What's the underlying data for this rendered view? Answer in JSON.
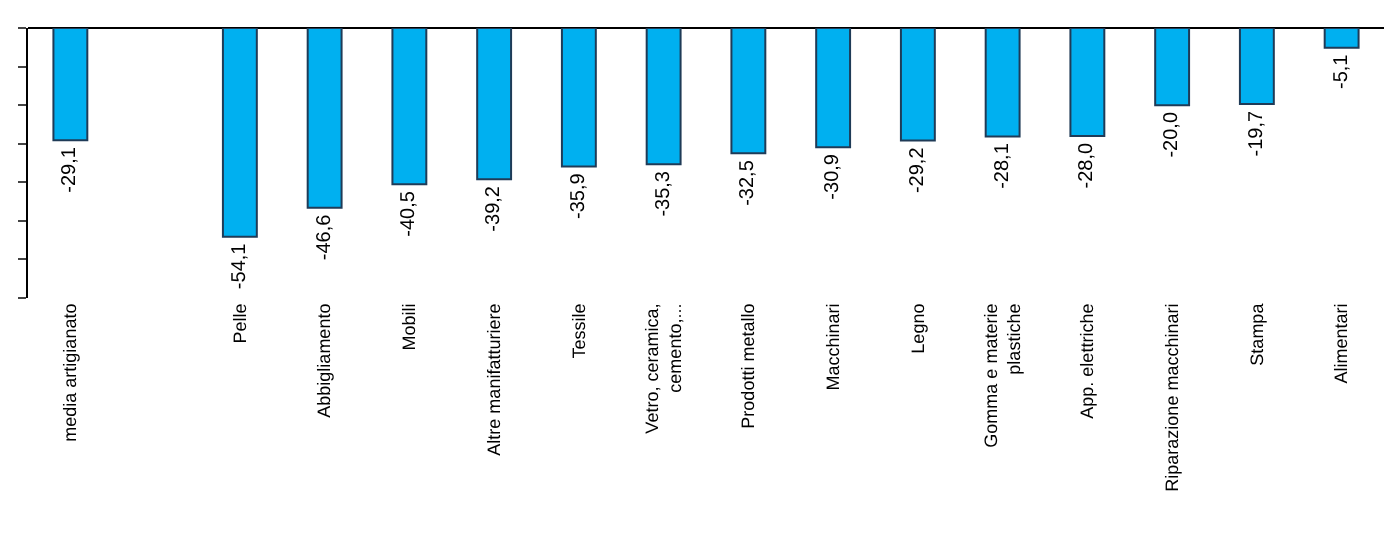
{
  "chart_data": {
    "type": "bar",
    "categories": [
      "media artigianato",
      null,
      "Pelle",
      "Abbigliamento",
      "Mobili",
      "Altre manifatturiere",
      "Tessile",
      "Vetro, ceramica, cemento,...",
      "Prodotti metallo",
      "Macchinari",
      "Legno",
      "Gomma e materie plastiche",
      "App. elettriche",
      "Riparazione macchinari",
      "Stampa",
      "Alimentari"
    ],
    "values": [
      -29.1,
      null,
      -54.1,
      -46.6,
      -40.5,
      -39.2,
      -35.9,
      -35.3,
      -32.5,
      -30.9,
      -29.2,
      -28.1,
      -28.0,
      -20.0,
      -19.7,
      -5.1
    ],
    "value_labels": [
      "-29,1",
      null,
      "-54,1",
      "-46,6",
      "-40,5",
      "-39,2",
      "-35,9",
      "-35,3",
      "-32,5",
      "-30,9",
      "-29,2",
      "-28,1",
      "-28,0",
      "-20,0",
      "-19,7",
      "-5,1"
    ],
    "color": "#00b0f0",
    "ylim": [
      -70,
      0
    ],
    "yticks": [
      {
        "value": 0,
        "label": null
      },
      {
        "value": -10,
        "label": null
      },
      {
        "value": -20,
        "label": null
      },
      {
        "value": -30,
        "label": null
      },
      {
        "value": -40,
        "label": null
      },
      {
        "value": -50,
        "label": null
      },
      {
        "value": -60,
        "label": null
      },
      {
        "value": -70,
        "label": null
      }
    ],
    "tick_labels": "x"
  }
}
